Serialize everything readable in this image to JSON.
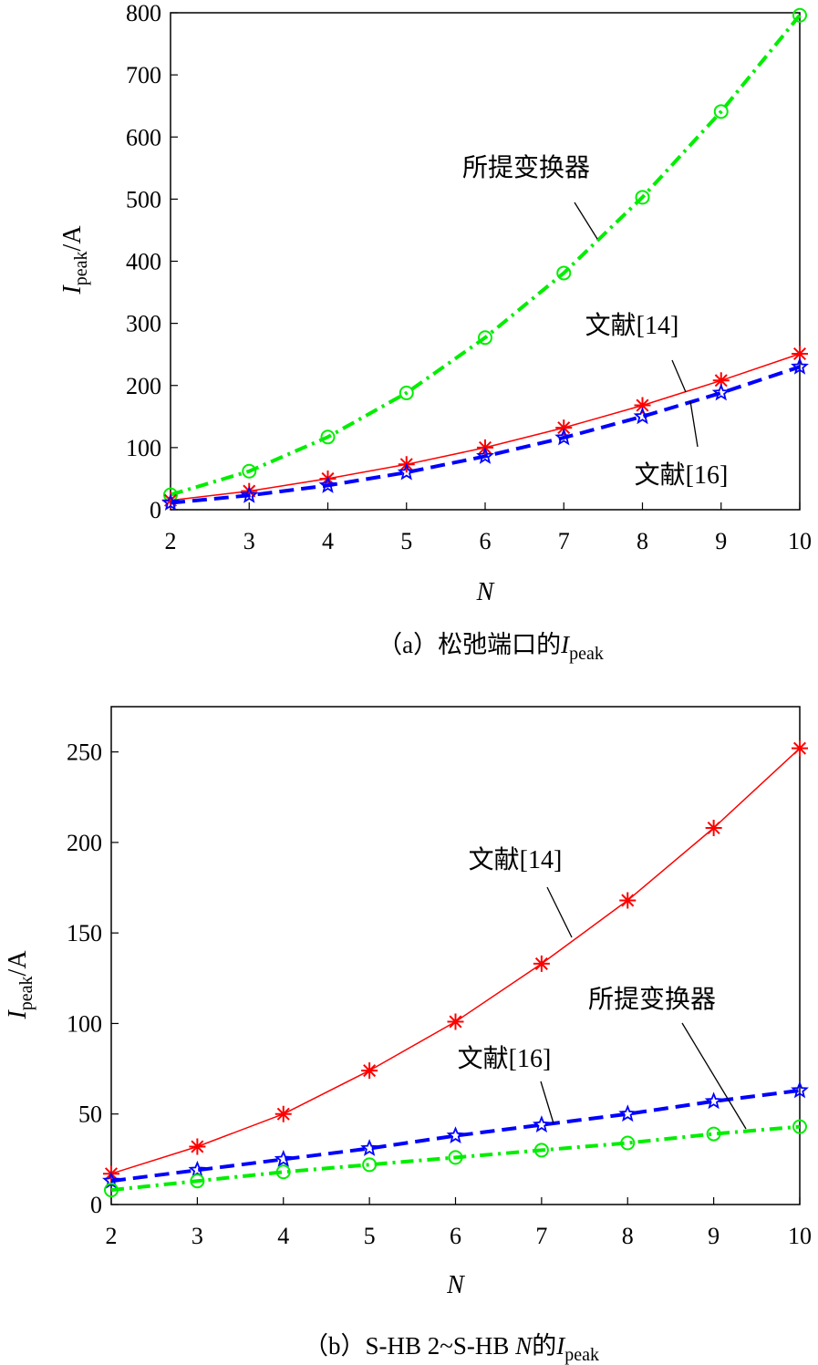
{
  "chart_data": [
    {
      "type": "line",
      "caption": {
        "pre": "（a）松弛端口的",
        "sym": "I",
        "sub": "peak"
      },
      "xlabel": "N",
      "ylabel": {
        "sym": "I",
        "sub": "peak",
        "unit": "/A"
      },
      "x": [
        2,
        3,
        4,
        5,
        6,
        7,
        8,
        9,
        10
      ],
      "xlim": [
        2,
        10
      ],
      "ylim": [
        0,
        800
      ],
      "yticks": [
        0,
        100,
        200,
        300,
        400,
        500,
        600,
        700,
        800
      ],
      "grid": false,
      "series": [
        {
          "name": "所提变换器",
          "color": "#00ee00",
          "style": "dashdot",
          "marker": "circle",
          "values": [
            24,
            62,
            117,
            188,
            277,
            381,
            503,
            641,
            796
          ]
        },
        {
          "name": "文献[14]",
          "color": "#ff0000",
          "style": "solid",
          "marker": "asterisk",
          "values": [
            15,
            30,
            50,
            73,
            100,
            132,
            168,
            208,
            251
          ]
        },
        {
          "name": "文献[16]",
          "color": "#0000ff",
          "style": "dashed",
          "marker": "star",
          "values": [
            11,
            23,
            39,
            60,
            86,
            116,
            150,
            188,
            230
          ]
        }
      ]
    },
    {
      "type": "line",
      "caption": {
        "pre": "（b）S-HB 2~S-HB ",
        "italic": "N",
        "mid": "的",
        "sym": "I",
        "sub": "peak"
      },
      "xlabel": "N",
      "ylabel": {
        "sym": "I",
        "sub": "peak",
        "unit": "/A"
      },
      "x": [
        2,
        3,
        4,
        5,
        6,
        7,
        8,
        9,
        10
      ],
      "xlim": [
        2,
        10
      ],
      "ylim": [
        0,
        275
      ],
      "yticks": [
        0,
        50,
        100,
        150,
        200,
        250
      ],
      "grid": false,
      "series": [
        {
          "name": "文献[14]",
          "color": "#ff0000",
          "style": "solid",
          "marker": "asterisk",
          "values": [
            17,
            32,
            50,
            74,
            101,
            133,
            168,
            208,
            252
          ]
        },
        {
          "name": "文献[16]",
          "color": "#0000ff",
          "style": "dashed",
          "marker": "star",
          "values": [
            13,
            19,
            25,
            31,
            38,
            44,
            50,
            57,
            63
          ]
        },
        {
          "name": "所提变换器",
          "color": "#00ee00",
          "style": "dashdot",
          "marker": "circle",
          "values": [
            8,
            13,
            18,
            22,
            26,
            30,
            34,
            39,
            43
          ]
        }
      ]
    }
  ]
}
